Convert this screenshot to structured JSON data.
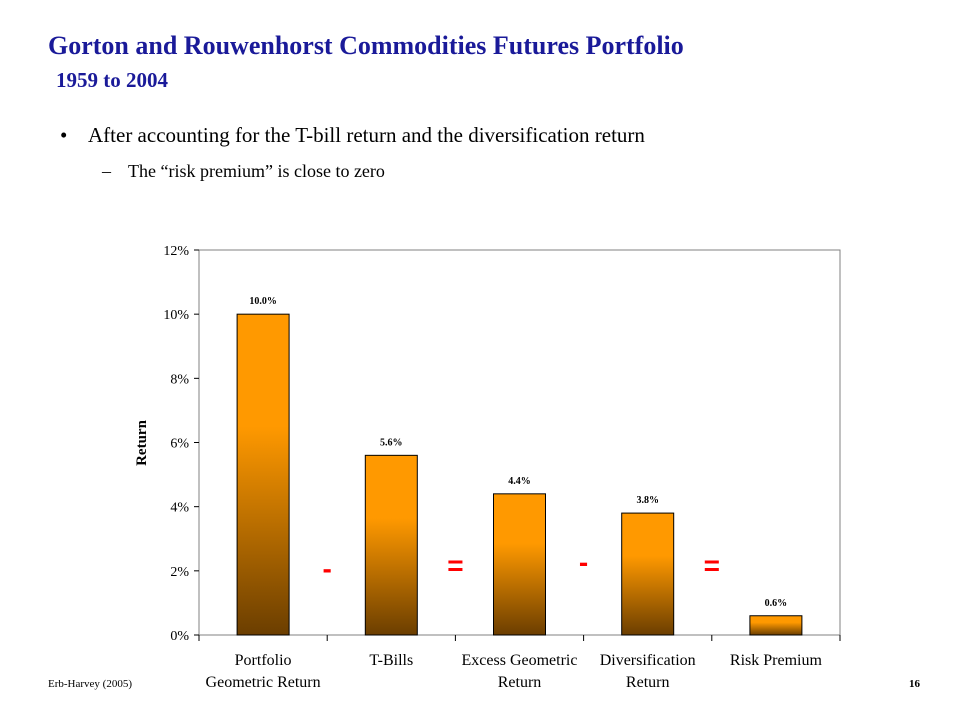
{
  "slide": {
    "title": "Gorton and Rouwenhorst Commodities Futures Portfolio",
    "subtitle": "1959 to 2004",
    "bullet": "After accounting for the T-bill return and the diversification return",
    "sub_bullet": "The “risk premium” is close to zero",
    "bullet_symbol": "•",
    "sub_bullet_symbol": "–",
    "footer_left": "Erb-Harvey (2005)",
    "page_number": "16"
  },
  "chart_data": {
    "type": "bar",
    "categories": [
      [
        "Portfolio",
        "Geometric Return"
      ],
      [
        "T-Bills"
      ],
      [
        "Excess Geometric",
        "Return"
      ],
      [
        "Diversification",
        "Return"
      ],
      [
        "Risk Premium"
      ]
    ],
    "values": [
      10.0,
      5.6,
      4.4,
      3.8,
      0.6
    ],
    "data_labels": [
      "10.0%",
      "5.6%",
      "4.4%",
      "3.8%",
      "0.6%"
    ],
    "ylabel": "Return",
    "ylim": [
      0,
      12
    ],
    "yticks": [
      0,
      2,
      4,
      6,
      8,
      10,
      12
    ],
    "ytick_labels": [
      "0%",
      "2%",
      "4%",
      "6%",
      "8%",
      "10%",
      "12%"
    ],
    "operators": [
      "-",
      "=",
      "-",
      "="
    ],
    "operator_color": "#ff0000",
    "bar_color_top": "#ff9900",
    "bar_color_bottom": "#6b3e00",
    "grid": false
  }
}
